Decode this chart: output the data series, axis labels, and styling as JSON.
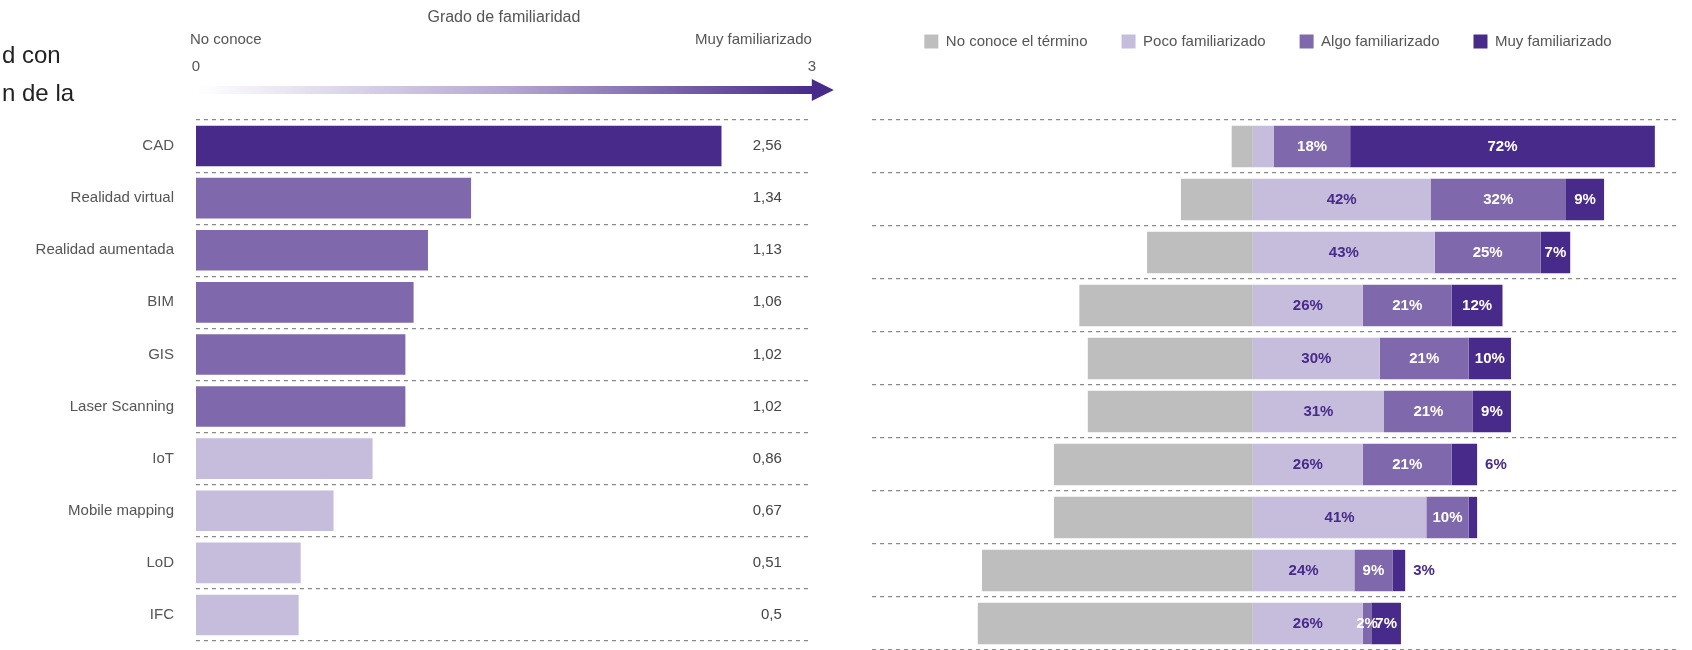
{
  "chart_data": [
    {
      "type": "bar",
      "orientation": "horizontal",
      "title": "d con\nn de la",
      "xlabel": "Grado de familiaridad",
      "annotations": [
        "No conoce",
        "Muy familiarizado"
      ],
      "categories": [
        "CAD",
        "Realidad virtual",
        "Realidad aumentada",
        "BIM",
        "GIS",
        "Laser Scanning",
        "IoT",
        "Mobile mapping",
        "LoD",
        "IFC"
      ],
      "values": [
        2.56,
        1.34,
        1.13,
        1.06,
        1.02,
        1.02,
        0.86,
        0.67,
        0.51,
        0.5
      ],
      "value_labels": [
        "2,56",
        "1,34",
        "1,13",
        "1,06",
        "1,02",
        "1,02",
        "0,86",
        "0,67",
        "0,51",
        "0,5"
      ],
      "colors": [
        "#472a8a",
        "#7f68ab",
        "#7f68ab",
        "#7f68ab",
        "#7f68ab",
        "#7f68ab",
        "#c6bcdc",
        "#c6bcdc",
        "#c6bcdc",
        "#c6bcdc"
      ],
      "xlim": [
        0,
        3
      ],
      "xticks": [
        0,
        3
      ],
      "grid": "y"
    },
    {
      "type": "bar",
      "orientation": "horizontal",
      "stacked": true,
      "legend": "top",
      "tick_labels": false,
      "grid": "y",
      "categories": [
        null,
        null,
        null,
        null,
        null,
        null,
        null,
        null,
        null,
        null
      ],
      "xlim": [
        -90,
        100
      ],
      "series": [
        {
          "name": "No conoce el término",
          "color": "#bebebe",
          "values": [
            -5,
            -17,
            -25,
            -41,
            -39,
            -39,
            -47,
            -47,
            -64,
            -65
          ],
          "value_labels": [
            null,
            null,
            null,
            null,
            null,
            null,
            null,
            null,
            null,
            null
          ]
        },
        {
          "name": "Poco familiarizado",
          "color": "#c6bcdc",
          "values": [
            5,
            42,
            43,
            26,
            30,
            31,
            26,
            41,
            24,
            26
          ],
          "value_labels": [
            null,
            "42%",
            "43%",
            "26%",
            "30%",
            "31%",
            "26%",
            "41%",
            "24%",
            "26%"
          ]
        },
        {
          "name": "Algo familiarizado",
          "color": "#7f68ab",
          "values": [
            18,
            32,
            25,
            21,
            21,
            21,
            21,
            10,
            9,
            2
          ],
          "value_labels": [
            "18%",
            "32%",
            "25%",
            "21%",
            "21%",
            "21%",
            "21%",
            "10%",
            "9%",
            "2%"
          ]
        },
        {
          "name": "Muy familiarizado",
          "color": "#472a8a",
          "values": [
            72,
            9,
            7,
            12,
            10,
            9,
            6,
            2,
            3,
            7
          ],
          "value_labels": [
            "72%",
            "9%",
            "7%",
            "12%",
            "10%",
            "9%",
            "6%",
            null,
            "3%",
            "7%"
          ]
        }
      ]
    }
  ]
}
